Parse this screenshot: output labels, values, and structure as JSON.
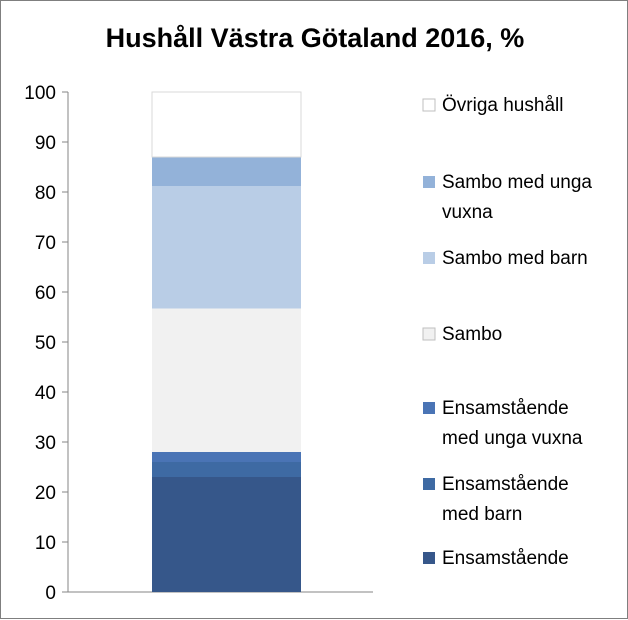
{
  "chart_data": {
    "type": "bar",
    "stacked": true,
    "title": "Hushåll Västra Götaland 2016, %",
    "categories": [
      ""
    ],
    "ylim": [
      0,
      100
    ],
    "yticks": [
      0,
      10,
      20,
      30,
      40,
      50,
      60,
      70,
      80,
      90,
      100
    ],
    "grid": false,
    "legend_position": "right",
    "series": [
      {
        "name": "Ensamstående",
        "values": [
          23
        ],
        "color": "#36578a",
        "legend_lines": [
          "Ensamstående"
        ]
      },
      {
        "name": "Ensamstående med barn",
        "values": [
          3
        ],
        "color": "#3e6aa3",
        "legend_lines": [
          "Ensamstående",
          "med barn"
        ]
      },
      {
        "name": "Ensamstående med unga vuxna",
        "values": [
          2
        ],
        "color": "#4a74b5",
        "legend_lines": [
          "Ensamstående",
          "med unga vuxna"
        ]
      },
      {
        "name": "Sambo",
        "values": [
          28.7
        ],
        "color": "#f1f1f1",
        "legend_lines": [
          "Sambo"
        ]
      },
      {
        "name": "Sambo med barn",
        "values": [
          24.5
        ],
        "color": "#b9cde6",
        "legend_lines": [
          "Sambo med barn"
        ]
      },
      {
        "name": "Sambo med unga vuxna",
        "values": [
          5.8
        ],
        "color": "#93b2d9",
        "legend_lines": [
          "Sambo med unga",
          "vuxna"
        ]
      },
      {
        "name": "Övriga hushåll",
        "values": [
          13
        ],
        "color": "#ffffff",
        "legend_lines": [
          "Övriga hushåll"
        ]
      }
    ]
  }
}
